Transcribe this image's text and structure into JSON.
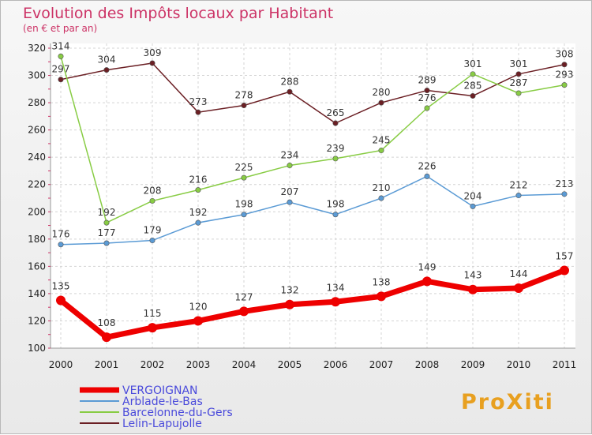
{
  "chart_data": {
    "type": "line",
    "title": "Evolution des Impôts locaux par Habitant",
    "subtitle": "(en € et par an)",
    "xlabel": "",
    "ylabel": "",
    "x": [
      "2000",
      "2001",
      "2002",
      "2003",
      "2004",
      "2005",
      "2006",
      "2007",
      "2008",
      "2009",
      "2010",
      "2011"
    ],
    "ylim": [
      100,
      320
    ],
    "yticks": [
      100,
      120,
      140,
      160,
      180,
      200,
      220,
      240,
      260,
      280,
      300,
      320
    ],
    "grid": true,
    "legend_position": "bottom-left",
    "series": [
      {
        "name": "VERGOIGNAN",
        "color": "#ee0000",
        "values": [
          135,
          108,
          115,
          120,
          127,
          132,
          134,
          138,
          149,
          143,
          144,
          157
        ]
      },
      {
        "name": "Arblade-le-Bas",
        "color": "#5b9bd5",
        "values": [
          176,
          177,
          179,
          192,
          198,
          207,
          198,
          210,
          226,
          204,
          212,
          213
        ]
      },
      {
        "name": "Barcelonne-du-Gers",
        "color": "#88cc44",
        "values": [
          314,
          192,
          208,
          216,
          225,
          234,
          239,
          245,
          276,
          301,
          287,
          293
        ]
      },
      {
        "name": "Lelin-Lapujolle",
        "color": "#6b1f24",
        "values": [
          297,
          304,
          309,
          273,
          278,
          288,
          265,
          280,
          289,
          285,
          301,
          308
        ]
      }
    ]
  },
  "logo": {
    "text": "ProXiti"
  }
}
